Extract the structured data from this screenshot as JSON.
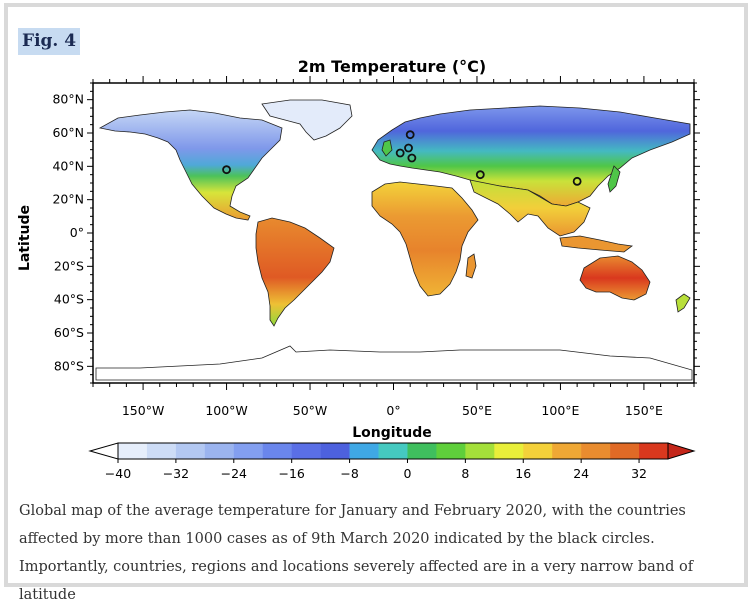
{
  "figure": {
    "label": "Fig. 4",
    "title": "2m Temperature (°C)",
    "xlabel": "Longitude",
    "ylabel": "Latitude",
    "caption": "Global map of the average temperature for January and February 2020, with the countries affected by more than 1000 cases as of 9th March 2020 indicated by the black circles. Importantly, countries, regions and locations severely affected are in a very narrow band of latitude"
  },
  "axes": {
    "longitude_ticks": [
      {
        "value": -150,
        "label": "150°W"
      },
      {
        "value": -100,
        "label": "100°W"
      },
      {
        "value": -50,
        "label": "50°W"
      },
      {
        "value": 0,
        "label": "0°"
      },
      {
        "value": 50,
        "label": "50°E"
      },
      {
        "value": 100,
        "label": "100°E"
      },
      {
        "value": 150,
        "label": "150°E"
      }
    ],
    "latitude_ticks": [
      {
        "value": 80,
        "label": "80°N"
      },
      {
        "value": 60,
        "label": "60°N"
      },
      {
        "value": 40,
        "label": "40°N"
      },
      {
        "value": 20,
        "label": "20°N"
      },
      {
        "value": 0,
        "label": "0°"
      },
      {
        "value": -20,
        "label": "20°S"
      },
      {
        "value": -40,
        "label": "40°S"
      },
      {
        "value": -60,
        "label": "60°S"
      },
      {
        "value": -80,
        "label": "80°S"
      }
    ],
    "lon_range": [
      -180,
      180
    ],
    "lat_range": [
      -90,
      90
    ]
  },
  "colorbar": {
    "min": -40,
    "max": 36,
    "step": 4,
    "labels": [
      "−40",
      "−32",
      "−24",
      "−16",
      "−8",
      "0",
      "8",
      "16",
      "24",
      "32"
    ],
    "label_values": [
      -40,
      -32,
      -24,
      -16,
      -8,
      0,
      8,
      16,
      24,
      32
    ],
    "colors": [
      "#e6eefb",
      "#cddcf6",
      "#b3c8f2",
      "#9bb4ef",
      "#839ff0",
      "#6a86ec",
      "#5a6fe6",
      "#4d61de",
      "#3fa8e5",
      "#45c9c0",
      "#3fbf5e",
      "#5fcf3b",
      "#a4e03a",
      "#e9ef3a",
      "#f4d13a",
      "#efa835",
      "#e98c2f",
      "#e06a26",
      "#d9381e"
    ]
  },
  "markers": [
    {
      "name": "USA",
      "lon": -100,
      "lat": 38
    },
    {
      "name": "Scandinavia",
      "lon": 10,
      "lat": 59
    },
    {
      "name": "France",
      "lon": 4,
      "lat": 48
    },
    {
      "name": "Germany",
      "lon": 9,
      "lat": 51
    },
    {
      "name": "Italy",
      "lon": 11,
      "lat": 45
    },
    {
      "name": "Iran",
      "lon": 52,
      "lat": 35
    },
    {
      "name": "China",
      "lon": 110,
      "lat": 31
    }
  ]
}
